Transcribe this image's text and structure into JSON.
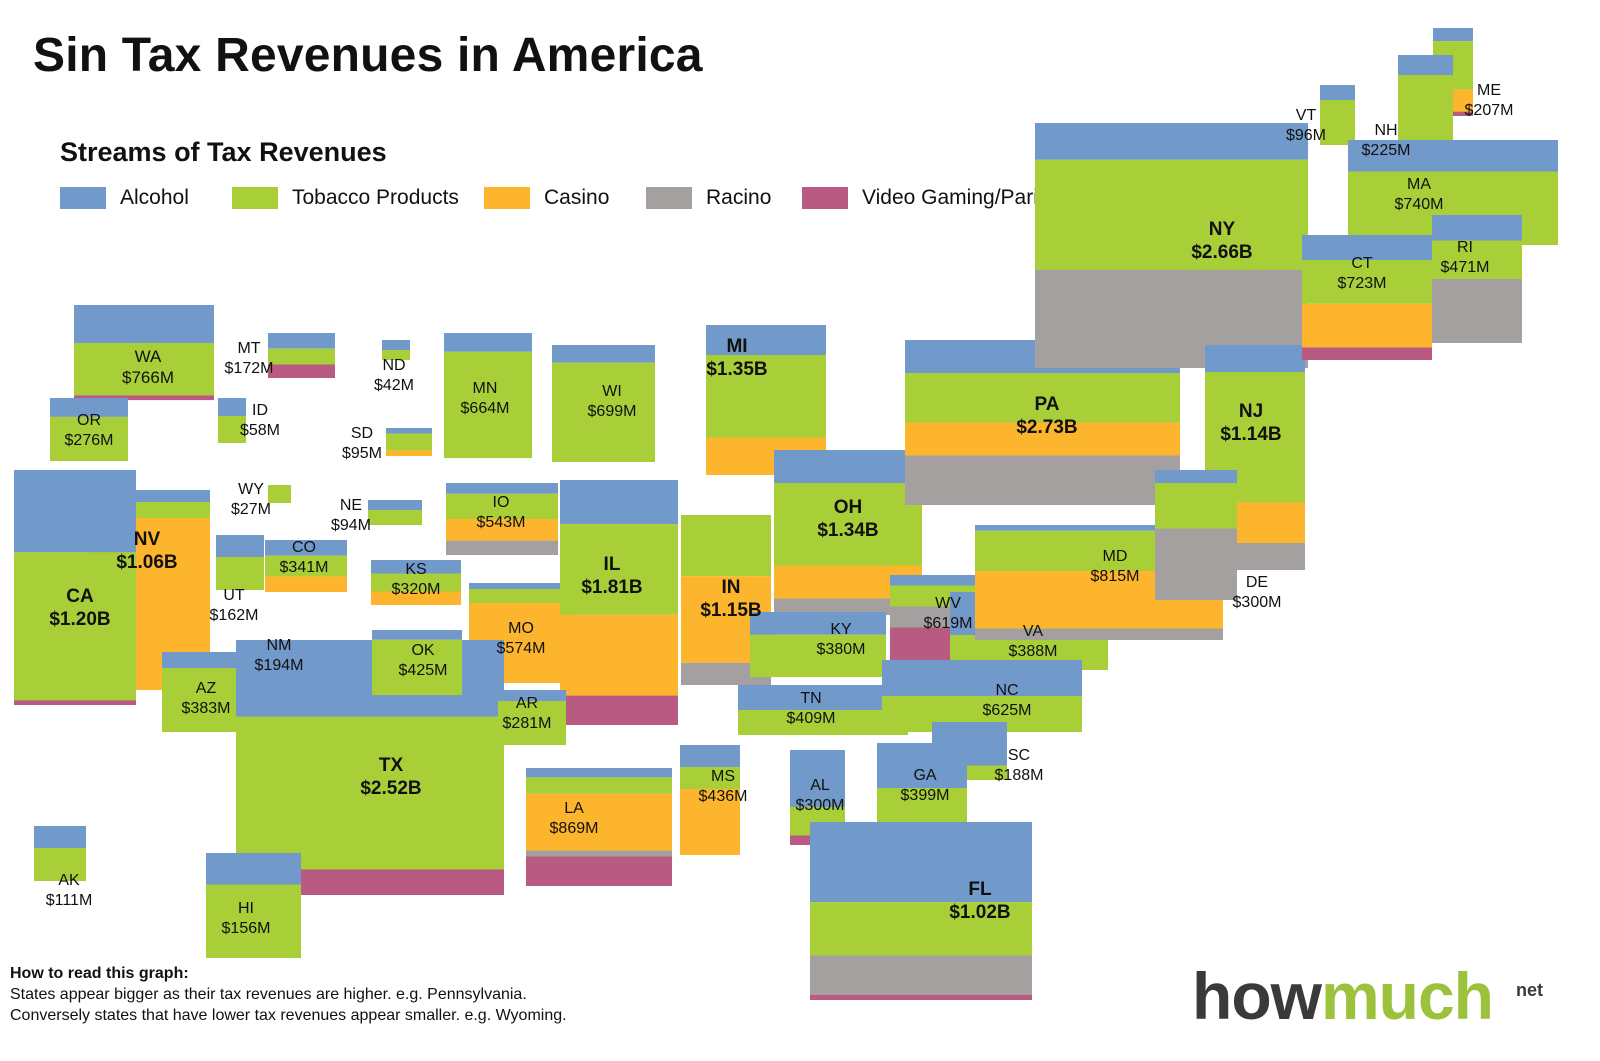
{
  "title": "Sin Tax Revenues in America",
  "legend": {
    "title": "Streams of Tax Revenues",
    "items": [
      {
        "key": "alcohol",
        "label": "Alcohol",
        "color": "#7199c9"
      },
      {
        "key": "tobacco",
        "label": "Tobacco Products",
        "color": "#a8cf38"
      },
      {
        "key": "casino",
        "label": "Casino",
        "color": "#fcb52d"
      },
      {
        "key": "racino",
        "label": "Racino",
        "color": "#a3a09f"
      },
      {
        "key": "video",
        "label": "Video Gaming/Pari-mutuel",
        "color": "#b95a82"
      }
    ]
  },
  "states": [
    {
      "abbr": "WA",
      "value": "$766M",
      "bands": [
        [
          "alcohol",
          0.4
        ],
        [
          "tobacco",
          0.55
        ],
        [
          "video",
          0.05
        ]
      ]
    },
    {
      "abbr": "MT",
      "value": "$172M",
      "bands": [
        [
          "alcohol",
          0.35
        ],
        [
          "tobacco",
          0.35
        ],
        [
          "video",
          0.3
        ]
      ]
    },
    {
      "abbr": "ND",
      "value": "$42M",
      "bands": [
        [
          "alcohol",
          0.5
        ],
        [
          "tobacco",
          0.5
        ]
      ]
    },
    {
      "abbr": "MN",
      "value": "$664M",
      "bands": [
        [
          "alcohol",
          0.15
        ],
        [
          "tobacco",
          0.85
        ]
      ]
    },
    {
      "abbr": "WI",
      "value": "$699M",
      "bands": [
        [
          "alcohol",
          0.15
        ],
        [
          "tobacco",
          0.85
        ]
      ]
    },
    {
      "abbr": "MI",
      "value": "$1.35B",
      "bands": [
        [
          "alcohol",
          0.2
        ],
        [
          "tobacco",
          0.55
        ],
        [
          "casino",
          0.25
        ]
      ]
    },
    {
      "abbr": "OR",
      "value": "$276M",
      "bands": [
        [
          "alcohol",
          0.3
        ],
        [
          "tobacco",
          0.7
        ]
      ]
    },
    {
      "abbr": "ID",
      "value": "$58M",
      "bands": [
        [
          "alcohol",
          0.4
        ],
        [
          "tobacco",
          0.6
        ]
      ]
    },
    {
      "abbr": "SD",
      "value": "$95M",
      "bands": [
        [
          "alcohol",
          0.2
        ],
        [
          "tobacco",
          0.6
        ],
        [
          "casino",
          0.2
        ]
      ]
    },
    {
      "abbr": "WY",
      "value": "$27M",
      "bands": [
        [
          "tobacco",
          1.0
        ]
      ]
    },
    {
      "abbr": "NE",
      "value": "$94M",
      "bands": [
        [
          "alcohol",
          0.4
        ],
        [
          "tobacco",
          0.6
        ]
      ]
    },
    {
      "abbr": "IO",
      "value": "$543M",
      "bands": [
        [
          "alcohol",
          0.15
        ],
        [
          "tobacco",
          0.35
        ],
        [
          "casino",
          0.3
        ],
        [
          "racino",
          0.2
        ]
      ]
    },
    {
      "abbr": "NV",
      "value": "$1.06B",
      "bands": [
        [
          "alcohol",
          0.06
        ],
        [
          "tobacco",
          0.08
        ],
        [
          "casino",
          0.86
        ]
      ]
    },
    {
      "abbr": "CA",
      "value": "$1.20B",
      "bands": [
        [
          "alcohol",
          0.35
        ],
        [
          "tobacco",
          0.63
        ],
        [
          "video",
          0.02
        ]
      ]
    },
    {
      "abbr": "UT",
      "value": "$162M",
      "bands": [
        [
          "alcohol",
          0.4
        ],
        [
          "tobacco",
          0.6
        ]
      ]
    },
    {
      "abbr": "CO",
      "value": "$341M",
      "bands": [
        [
          "alcohol",
          0.3
        ],
        [
          "tobacco",
          0.4
        ],
        [
          "casino",
          0.3
        ]
      ]
    },
    {
      "abbr": "KS",
      "value": "$320M",
      "bands": [
        [
          "alcohol",
          0.3
        ],
        [
          "tobacco",
          0.4
        ],
        [
          "casino",
          0.3
        ]
      ]
    },
    {
      "abbr": "MO",
      "value": "$574M",
      "bands": [
        [
          "alcohol",
          0.06
        ],
        [
          "tobacco",
          0.14
        ],
        [
          "casino",
          0.8
        ]
      ]
    },
    {
      "abbr": "IL",
      "value": "$1.81B",
      "bands": [
        [
          "alcohol",
          0.18
        ],
        [
          "tobacco",
          0.37
        ],
        [
          "casino",
          0.33
        ],
        [
          "video",
          0.12
        ]
      ]
    },
    {
      "abbr": "IN",
      "value": "$1.15B",
      "bands": [
        [
          "tobacco",
          0.36
        ],
        [
          "casino",
          0.51
        ],
        [
          "racino",
          0.13
        ]
      ]
    },
    {
      "abbr": "OH",
      "value": "$1.34B",
      "bands": [
        [
          "alcohol",
          0.2
        ],
        [
          "tobacco",
          0.5
        ],
        [
          "casino",
          0.2
        ],
        [
          "racino",
          0.1
        ]
      ]
    },
    {
      "abbr": "PA",
      "value": "$2.73B",
      "bands": [
        [
          "alcohol",
          0.2
        ],
        [
          "tobacco",
          0.3
        ],
        [
          "casino",
          0.2
        ],
        [
          "racino",
          0.3
        ]
      ]
    },
    {
      "abbr": "NY",
      "value": "$2.66B",
      "bands": [
        [
          "alcohol",
          0.15
        ],
        [
          "tobacco",
          0.45
        ],
        [
          "racino",
          0.4
        ]
      ]
    },
    {
      "abbr": "NJ",
      "value": "$1.14B",
      "bands": [
        [
          "alcohol",
          0.12
        ],
        [
          "tobacco",
          0.58
        ],
        [
          "casino",
          0.18
        ],
        [
          "racino",
          0.12
        ]
      ]
    },
    {
      "abbr": "AZ",
      "value": "$383M",
      "bands": [
        [
          "alcohol",
          0.2
        ],
        [
          "tobacco",
          0.8
        ]
      ]
    },
    {
      "abbr": "NM",
      "value": "$194M",
      "bands": [
        [
          "alcohol",
          0.25
        ],
        [
          "tobacco",
          0.45
        ],
        [
          "racino",
          0.3
        ]
      ]
    },
    {
      "abbr": "TX",
      "value": "$2.52B",
      "bands": [
        [
          "alcohol",
          0.3
        ],
        [
          "tobacco",
          0.6
        ],
        [
          "video",
          0.1
        ]
      ]
    },
    {
      "abbr": "OK",
      "value": "$425M",
      "bands": [
        [
          "alcohol",
          0.15
        ],
        [
          "tobacco",
          0.85
        ]
      ]
    },
    {
      "abbr": "AR",
      "value": "$281M",
      "bands": [
        [
          "alcohol",
          0.2
        ],
        [
          "tobacco",
          0.8
        ]
      ]
    },
    {
      "abbr": "LA",
      "value": "$869M",
      "bands": [
        [
          "alcohol",
          0.08
        ],
        [
          "tobacco",
          0.14
        ],
        [
          "casino",
          0.48
        ],
        [
          "racino",
          0.05
        ],
        [
          "video",
          0.25
        ]
      ]
    },
    {
      "abbr": "MS",
      "value": "$436M",
      "bands": [
        [
          "alcohol",
          0.2
        ],
        [
          "tobacco",
          0.2
        ],
        [
          "casino",
          0.6
        ]
      ]
    },
    {
      "abbr": "AL",
      "value": "$300M",
      "bands": [
        [
          "alcohol",
          0.6
        ],
        [
          "tobacco",
          0.3
        ],
        [
          "video",
          0.1
        ]
      ]
    },
    {
      "abbr": "TN",
      "value": "$409M",
      "bands": [
        [
          "alcohol",
          0.5
        ],
        [
          "tobacco",
          0.5
        ]
      ]
    },
    {
      "abbr": "KY",
      "value": "$380M",
      "bands": [
        [
          "alcohol",
          0.35
        ],
        [
          "tobacco",
          0.65
        ]
      ]
    },
    {
      "abbr": "WV",
      "value": "$619M",
      "bands": [
        [
          "alcohol",
          0.1
        ],
        [
          "tobacco",
          0.2
        ],
        [
          "racino",
          0.2
        ],
        [
          "video",
          0.5
        ]
      ]
    },
    {
      "abbr": "VA",
      "value": "$388M",
      "bands": [
        [
          "alcohol",
          0.55
        ],
        [
          "tobacco",
          0.45
        ]
      ]
    },
    {
      "abbr": "MD",
      "value": "$815M",
      "bands": [
        [
          "alcohol",
          0.05
        ],
        [
          "tobacco",
          0.35
        ],
        [
          "casino",
          0.5
        ],
        [
          "racino",
          0.1
        ]
      ]
    },
    {
      "abbr": "DE",
      "value": "$300M",
      "bands": [
        [
          "alcohol",
          0.1
        ],
        [
          "tobacco",
          0.35
        ],
        [
          "racino",
          0.55
        ]
      ]
    },
    {
      "abbr": "NC",
      "value": "$625M",
      "bands": [
        [
          "alcohol",
          0.5
        ],
        [
          "tobacco",
          0.5
        ]
      ]
    },
    {
      "abbr": "SC",
      "value": "$188M",
      "bands": [
        [
          "alcohol",
          0.75
        ],
        [
          "tobacco",
          0.25
        ]
      ]
    },
    {
      "abbr": "GA",
      "value": "$399M",
      "bands": [
        [
          "alcohol",
          0.5
        ],
        [
          "tobacco",
          0.5
        ]
      ]
    },
    {
      "abbr": "FL",
      "value": "$1.02B",
      "bands": [
        [
          "alcohol",
          0.45
        ],
        [
          "tobacco",
          0.3
        ],
        [
          "racino",
          0.22
        ],
        [
          "video",
          0.03
        ]
      ]
    },
    {
      "abbr": "AK",
      "value": "$111M",
      "bands": [
        [
          "alcohol",
          0.4
        ],
        [
          "tobacco",
          0.6
        ]
      ]
    },
    {
      "abbr": "HI",
      "value": "$156M",
      "bands": [
        [
          "alcohol",
          0.3
        ],
        [
          "tobacco",
          0.7
        ]
      ]
    },
    {
      "abbr": "ME",
      "value": "$207M",
      "bands": [
        [
          "alcohol",
          0.15
        ],
        [
          "tobacco",
          0.55
        ],
        [
          "casino",
          0.25
        ],
        [
          "video",
          0.05
        ]
      ]
    },
    {
      "abbr": "VT",
      "value": "$96M",
      "bands": [
        [
          "alcohol",
          0.25
        ],
        [
          "tobacco",
          0.75
        ]
      ]
    },
    {
      "abbr": "NH",
      "value": "$225M",
      "bands": [
        [
          "alcohol",
          0.2
        ],
        [
          "tobacco",
          0.8
        ]
      ]
    },
    {
      "abbr": "MA",
      "value": "$740M",
      "bands": [
        [
          "alcohol",
          0.3
        ],
        [
          "tobacco",
          0.7
        ]
      ]
    },
    {
      "abbr": "RI",
      "value": "$471M",
      "bands": [
        [
          "alcohol",
          0.2
        ],
        [
          "tobacco",
          0.3
        ],
        [
          "racino",
          0.5
        ]
      ]
    },
    {
      "abbr": "CT",
      "value": "$723M",
      "bands": [
        [
          "alcohol",
          0.2
        ],
        [
          "tobacco",
          0.35
        ],
        [
          "casino",
          0.35
        ],
        [
          "video",
          0.1
        ]
      ]
    }
  ],
  "how_to_read": {
    "title": "How to read this graph:",
    "line1": "States appear bigger as their tax revenues are higher. e.g. Pennsylvania.",
    "line2": "Conversely states that have lower tax revenues appear smaller. e.g. Wyoming."
  },
  "brand": {
    "how": "how",
    "much": "much",
    "net": "net"
  }
}
